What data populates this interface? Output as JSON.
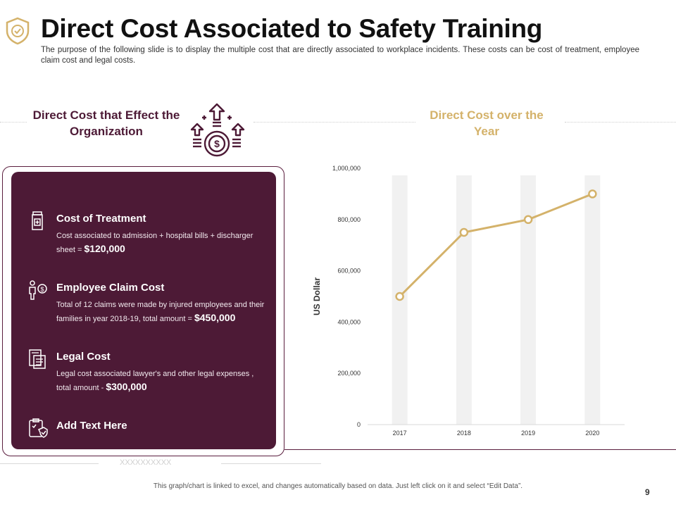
{
  "header": {
    "title": "Direct Cost Associated to Safety Training",
    "subtitle": "The purpose of the following slide is to display the multiple cost that are directly associated to workplace incidents. These costs can be cost of treatment, employee claim cost and legal costs."
  },
  "left_section": {
    "heading": "Direct Cost that Effect the Organization",
    "items": [
      {
        "icon": "medicine-bottle-icon",
        "title": "Cost  of Treatment",
        "desc": "Cost associated to admission + hospital bills + discharger sheet = ",
        "amount": "$120,000"
      },
      {
        "icon": "employee-dollar-icon",
        "title": "Employee Claim Cost",
        "desc": "Total of 12 claims were made by injured employees and their families in year 2018-19, total amount = ",
        "amount": "$450,000"
      },
      {
        "icon": "legal-document-icon",
        "title": "Legal Cost",
        "desc": "Legal cost associated lawyer's and other legal expenses , total amount - ",
        "amount": "$300,000"
      },
      {
        "icon": "clipboard-check-icon",
        "title": "Add Text Here",
        "desc": "",
        "amount": ""
      }
    ]
  },
  "right_section": {
    "heading": "Direct Cost over the Year"
  },
  "chart_data": {
    "type": "line",
    "title": "Direct Cost over the Year",
    "categories": [
      "2017",
      "2018",
      "2019",
      "2020"
    ],
    "series": [
      {
        "name": "Direct Cost",
        "values": [
          500000,
          750000,
          800000,
          900000
        ]
      }
    ],
    "xlabel": "",
    "ylabel": "US Dollar",
    "ylim": [
      0,
      1000000
    ],
    "yticks": [
      0,
      200000,
      400000,
      600000,
      800000,
      1000000
    ],
    "ytick_labels": [
      "0",
      "200,000",
      "400,000",
      "600,000",
      "800,000",
      "1,000,000"
    ],
    "grid": false,
    "legend": "none",
    "line_color": "#d4b26a"
  },
  "decoration": {
    "x_marks": "XXXXXXXXXX"
  },
  "footer": {
    "note": "This graph/chart is linked to excel, and changes automatically based on data. Just left click on it and select “Edit Data”.",
    "page_number": "9"
  },
  "colors": {
    "primary": "#4d1a36",
    "accent": "#d4b26a",
    "text": "#111111"
  }
}
